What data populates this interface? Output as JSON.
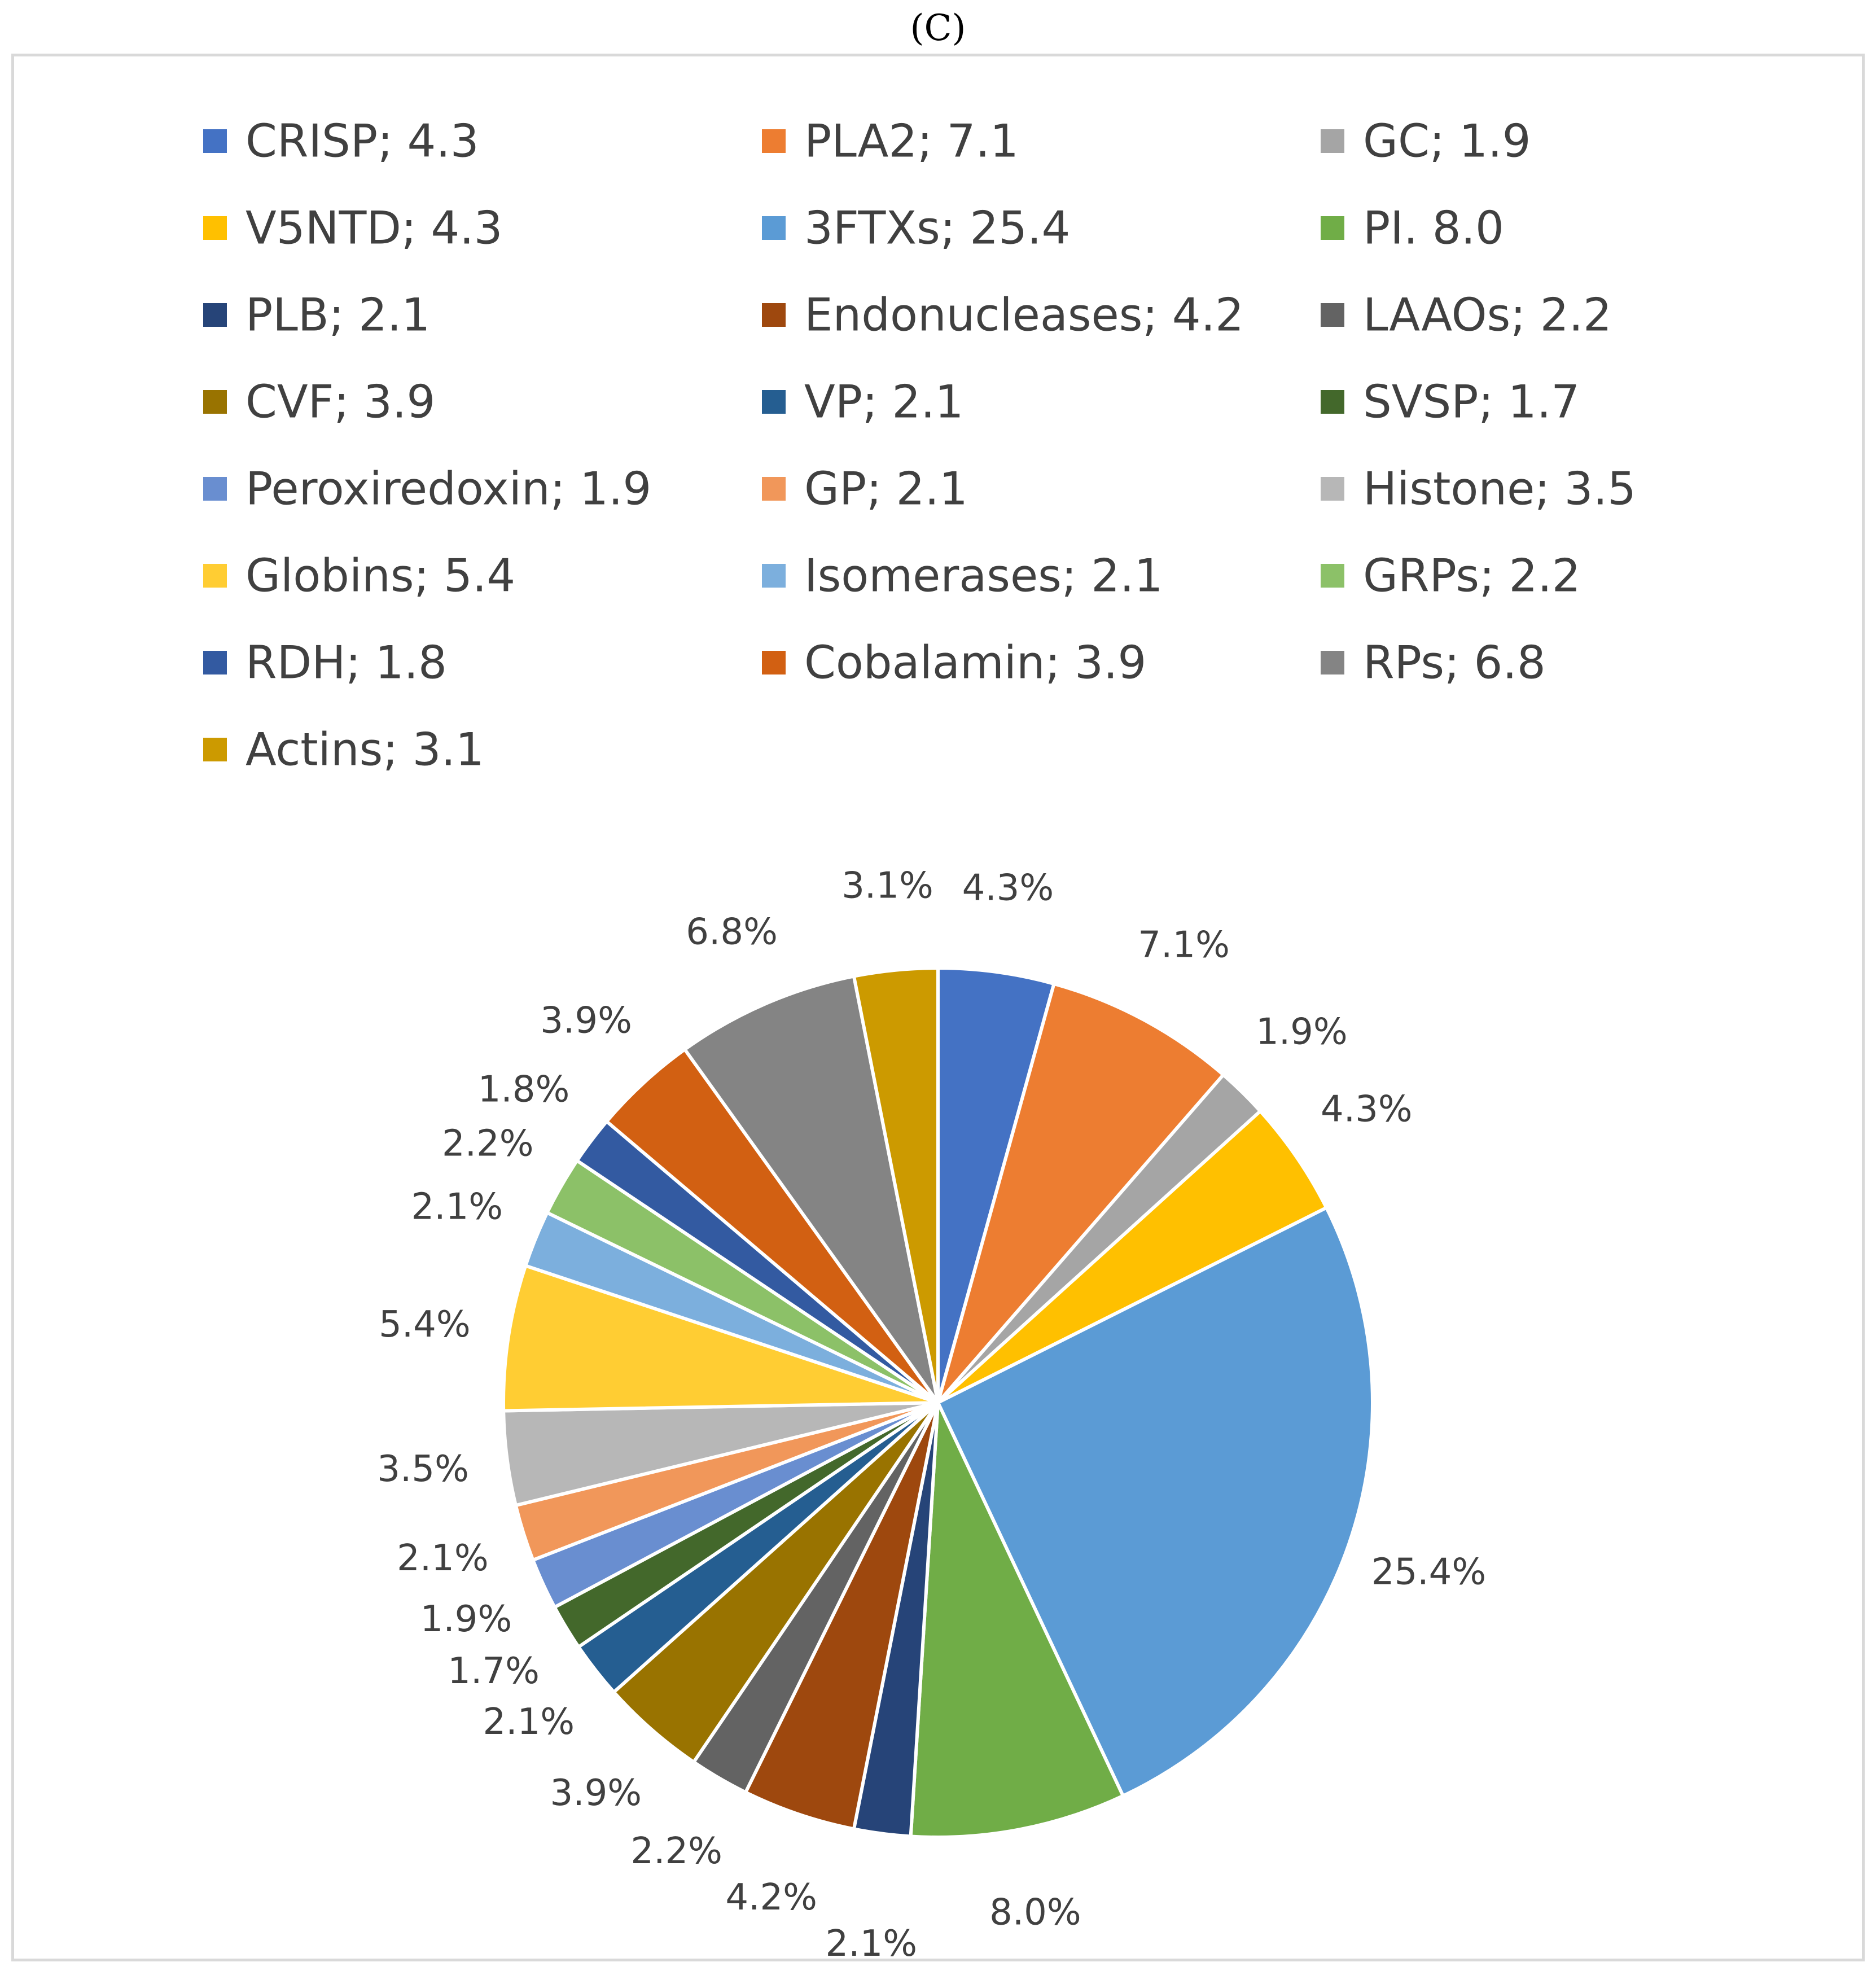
{
  "figure": {
    "panel_label": "(C)"
  },
  "chart_data": {
    "type": "pie",
    "title": "",
    "legend_position": "top",
    "slices": [
      {
        "name": "CRISP",
        "legend": "CRISP; 4.3",
        "value": 4.3,
        "label": "4.3%",
        "color": "#4472C4"
      },
      {
        "name": "PLA2",
        "legend": "PLA2; 7.1",
        "value": 7.1,
        "label": "7.1%",
        "color": "#ED7D31"
      },
      {
        "name": "GC",
        "legend": "GC; 1.9",
        "value": 1.9,
        "label": "1.9%",
        "color": "#A5A5A5"
      },
      {
        "name": "V5NTD",
        "legend": "V5NTD; 4.3",
        "value": 4.3,
        "label": "4.3%",
        "color": "#FFC000"
      },
      {
        "name": "3FTXs",
        "legend": "3FTXs; 25.4",
        "value": 25.4,
        "label": "25.4%",
        "color": "#5B9BD5"
      },
      {
        "name": "PI",
        "legend": "PI. 8.0",
        "value": 8.0,
        "label": "8.0%",
        "color": "#70AD47"
      },
      {
        "name": "PLB",
        "legend": "PLB; 2.1",
        "value": 2.1,
        "label": "2.1%",
        "color": "#264478"
      },
      {
        "name": "Endonucleases",
        "legend": "Endonucleases; 4.2",
        "value": 4.2,
        "label": "4.2%",
        "color": "#9E480E"
      },
      {
        "name": "LAAOs",
        "legend": "LAAOs; 2.2",
        "value": 2.2,
        "label": "2.2%",
        "color": "#636363"
      },
      {
        "name": "CVF",
        "legend": "CVF; 3.9",
        "value": 3.9,
        "label": "3.9%",
        "color": "#997300"
      },
      {
        "name": "VP",
        "legend": "VP; 2.1",
        "value": 2.1,
        "label": "2.1%",
        "color": "#255E91"
      },
      {
        "name": "SVSP",
        "legend": "SVSP; 1.7",
        "value": 1.7,
        "label": "1.7%",
        "color": "#43682B"
      },
      {
        "name": "Peroxiredoxin",
        "legend": "Peroxiredoxin; 1.9",
        "value": 1.9,
        "label": "1.9%",
        "color": "#698ED0"
      },
      {
        "name": "GP",
        "legend": "GP; 2.1",
        "value": 2.1,
        "label": "2.1%",
        "color": "#F1975A"
      },
      {
        "name": "Histone",
        "legend": "Histone; 3.5",
        "value": 3.5,
        "label": "3.5%",
        "color": "#B7B7B7"
      },
      {
        "name": "Globins",
        "legend": "Globins; 5.4",
        "value": 5.4,
        "label": "5.4%",
        "color": "#FFCD33"
      },
      {
        "name": "Isomerases",
        "legend": "Isomerases; 2.1",
        "value": 2.1,
        "label": "2.1%",
        "color": "#7CAFDD"
      },
      {
        "name": "GRPs",
        "legend": "GRPs; 2.2",
        "value": 2.2,
        "label": "2.2%",
        "color": "#8CC168"
      },
      {
        "name": "RDH",
        "legend": "RDH; 1.8",
        "value": 1.8,
        "label": "1.8%",
        "color": "#335AA1"
      },
      {
        "name": "Cobalamin",
        "legend": "Cobalamin; 3.9",
        "value": 3.9,
        "label": "3.9%",
        "color": "#D26012"
      },
      {
        "name": "RPs",
        "legend": "RPs; 6.8",
        "value": 6.8,
        "label": "6.8%",
        "color": "#848484"
      },
      {
        "name": "Actins",
        "legend": "Actins; 3.1",
        "value": 3.1,
        "label": "3.1%",
        "color": "#CC9A00"
      }
    ]
  }
}
